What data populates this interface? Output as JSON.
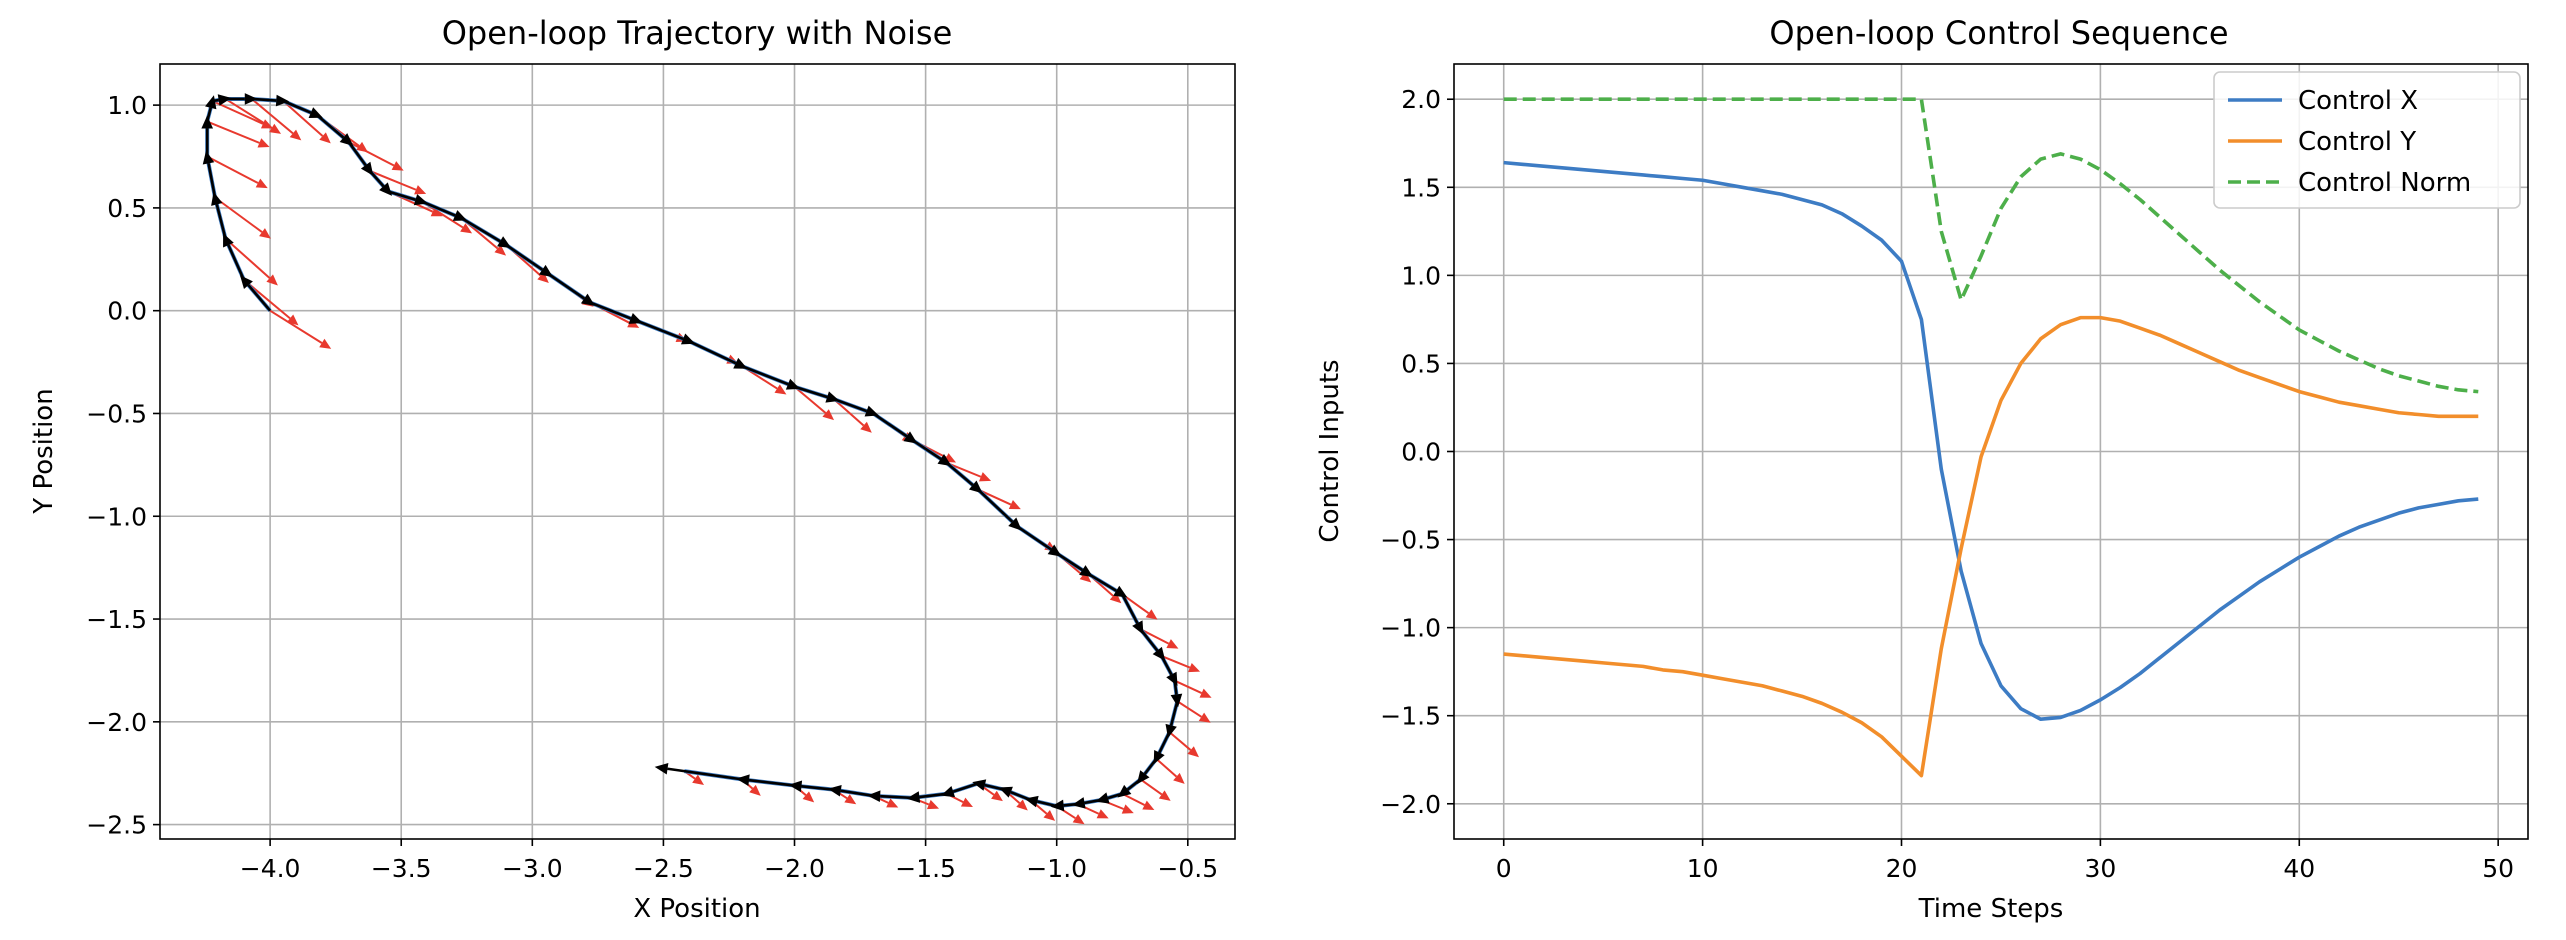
{
  "chart_data": [
    {
      "type": "scatter",
      "title": "Open-loop Trajectory with Noise",
      "xlabel": "X Position",
      "ylabel": "Y Position",
      "xlim": [
        -4.42,
        -0.32
      ],
      "ylim": [
        -2.57,
        1.2
      ],
      "xticks": [
        -4.0,
        -3.5,
        -3.0,
        -2.5,
        -2.0,
        -1.5,
        -1.0,
        -0.5
      ],
      "yticks": [
        -2.5,
        -2.0,
        -1.5,
        -1.0,
        -0.5,
        0.0,
        0.5,
        1.0
      ],
      "grid": true,
      "colors": {
        "trajectory": "#3d7cc4",
        "noise_arrows": "#e8392e",
        "heading_arrows": "#000000"
      },
      "trajectory": {
        "x": [
          -4.0,
          -4.1,
          -4.17,
          -4.21,
          -4.24,
          -4.24,
          -4.22,
          -4.17,
          -4.07,
          -3.95,
          -3.82,
          -3.7,
          -3.62,
          -3.55,
          -3.42,
          -3.27,
          -3.1,
          -2.94,
          -2.78,
          -2.6,
          -2.4,
          -2.2,
          -2.0,
          -1.85,
          -1.7,
          -1.55,
          -1.42,
          -1.3,
          -1.15,
          -1.0,
          -0.88,
          -0.75,
          -0.68,
          -0.6,
          -0.55,
          -0.54,
          -0.57,
          -0.62,
          -0.68,
          -0.75,
          -0.83,
          -0.92,
          -1.0,
          -1.1,
          -1.2,
          -1.3,
          -1.42,
          -1.55,
          -1.7,
          -1.85,
          -2.0,
          -2.2,
          -2.42
        ],
        "y": [
          0.0,
          0.15,
          0.35,
          0.55,
          0.75,
          0.92,
          1.02,
          1.03,
          1.03,
          1.02,
          0.95,
          0.82,
          0.68,
          0.58,
          0.53,
          0.45,
          0.32,
          0.18,
          0.04,
          -0.05,
          -0.15,
          -0.27,
          -0.37,
          -0.43,
          -0.5,
          -0.63,
          -0.74,
          -0.87,
          -1.05,
          -1.18,
          -1.28,
          -1.38,
          -1.55,
          -1.68,
          -1.8,
          -1.9,
          -2.05,
          -2.18,
          -2.28,
          -2.35,
          -2.38,
          -2.4,
          -2.41,
          -2.38,
          -2.33,
          -2.3,
          -2.35,
          -2.37,
          -2.36,
          -2.33,
          -2.31,
          -2.28,
          -2.24
        ]
      }
    },
    {
      "type": "line",
      "title": "Open-loop Control Sequence",
      "xlabel": "Time Steps",
      "ylabel": "Control Inputs",
      "xlim": [
        -2.5,
        51.5
      ],
      "ylim": [
        -2.2,
        2.2
      ],
      "xticks": [
        0,
        10,
        20,
        30,
        40,
        50
      ],
      "yticks": [
        -2.0,
        -1.5,
        -1.0,
        -0.5,
        0.0,
        0.5,
        1.0,
        1.5,
        2.0
      ],
      "grid": true,
      "legend_position": "top-right",
      "x": [
        0,
        1,
        2,
        3,
        4,
        5,
        6,
        7,
        8,
        9,
        10,
        11,
        12,
        13,
        14,
        15,
        16,
        17,
        18,
        19,
        20,
        21,
        22,
        23,
        24,
        25,
        26,
        27,
        28,
        29,
        30,
        31,
        32,
        33,
        34,
        35,
        36,
        37,
        38,
        39,
        40,
        41,
        42,
        43,
        44,
        45,
        46,
        47,
        48,
        49
      ],
      "series": [
        {
          "name": "Control X",
          "color": "#3d7cc4",
          "dash": "solid",
          "values": [
            1.64,
            1.63,
            1.62,
            1.61,
            1.6,
            1.59,
            1.58,
            1.57,
            1.56,
            1.55,
            1.54,
            1.52,
            1.5,
            1.48,
            1.46,
            1.43,
            1.4,
            1.35,
            1.28,
            1.2,
            1.08,
            0.75,
            -0.1,
            -0.68,
            -1.09,
            -1.33,
            -1.46,
            -1.52,
            -1.51,
            -1.47,
            -1.41,
            -1.34,
            -1.26,
            -1.17,
            -1.08,
            -0.99,
            -0.9,
            -0.82,
            -0.74,
            -0.67,
            -0.6,
            -0.54,
            -0.48,
            -0.43,
            -0.39,
            -0.35,
            -0.32,
            -0.3,
            -0.28,
            -0.27
          ]
        },
        {
          "name": "Control Y",
          "color": "#f28e2b",
          "dash": "solid",
          "values": [
            -1.15,
            -1.16,
            -1.17,
            -1.18,
            -1.19,
            -1.2,
            -1.21,
            -1.22,
            -1.24,
            -1.25,
            -1.27,
            -1.29,
            -1.31,
            -1.33,
            -1.36,
            -1.39,
            -1.43,
            -1.48,
            -1.54,
            -1.62,
            -1.73,
            -1.84,
            -1.12,
            -0.55,
            -0.03,
            0.29,
            0.5,
            0.64,
            0.72,
            0.76,
            0.76,
            0.74,
            0.7,
            0.66,
            0.61,
            0.56,
            0.51,
            0.46,
            0.42,
            0.38,
            0.34,
            0.31,
            0.28,
            0.26,
            0.24,
            0.22,
            0.21,
            0.2,
            0.2,
            0.2
          ]
        },
        {
          "name": "Control Norm",
          "color": "#4daf4a",
          "dash": "dashed",
          "values": [
            2.0,
            2.0,
            2.0,
            2.0,
            2.0,
            2.0,
            2.0,
            2.0,
            2.0,
            2.0,
            2.0,
            2.0,
            2.0,
            2.0,
            2.0,
            2.0,
            2.0,
            2.0,
            2.0,
            2.0,
            2.0,
            2.0,
            1.25,
            0.86,
            1.11,
            1.38,
            1.56,
            1.66,
            1.69,
            1.66,
            1.6,
            1.52,
            1.43,
            1.33,
            1.23,
            1.13,
            1.03,
            0.94,
            0.85,
            0.77,
            0.69,
            0.63,
            0.57,
            0.52,
            0.47,
            0.43,
            0.4,
            0.37,
            0.35,
            0.34
          ]
        }
      ]
    }
  ]
}
